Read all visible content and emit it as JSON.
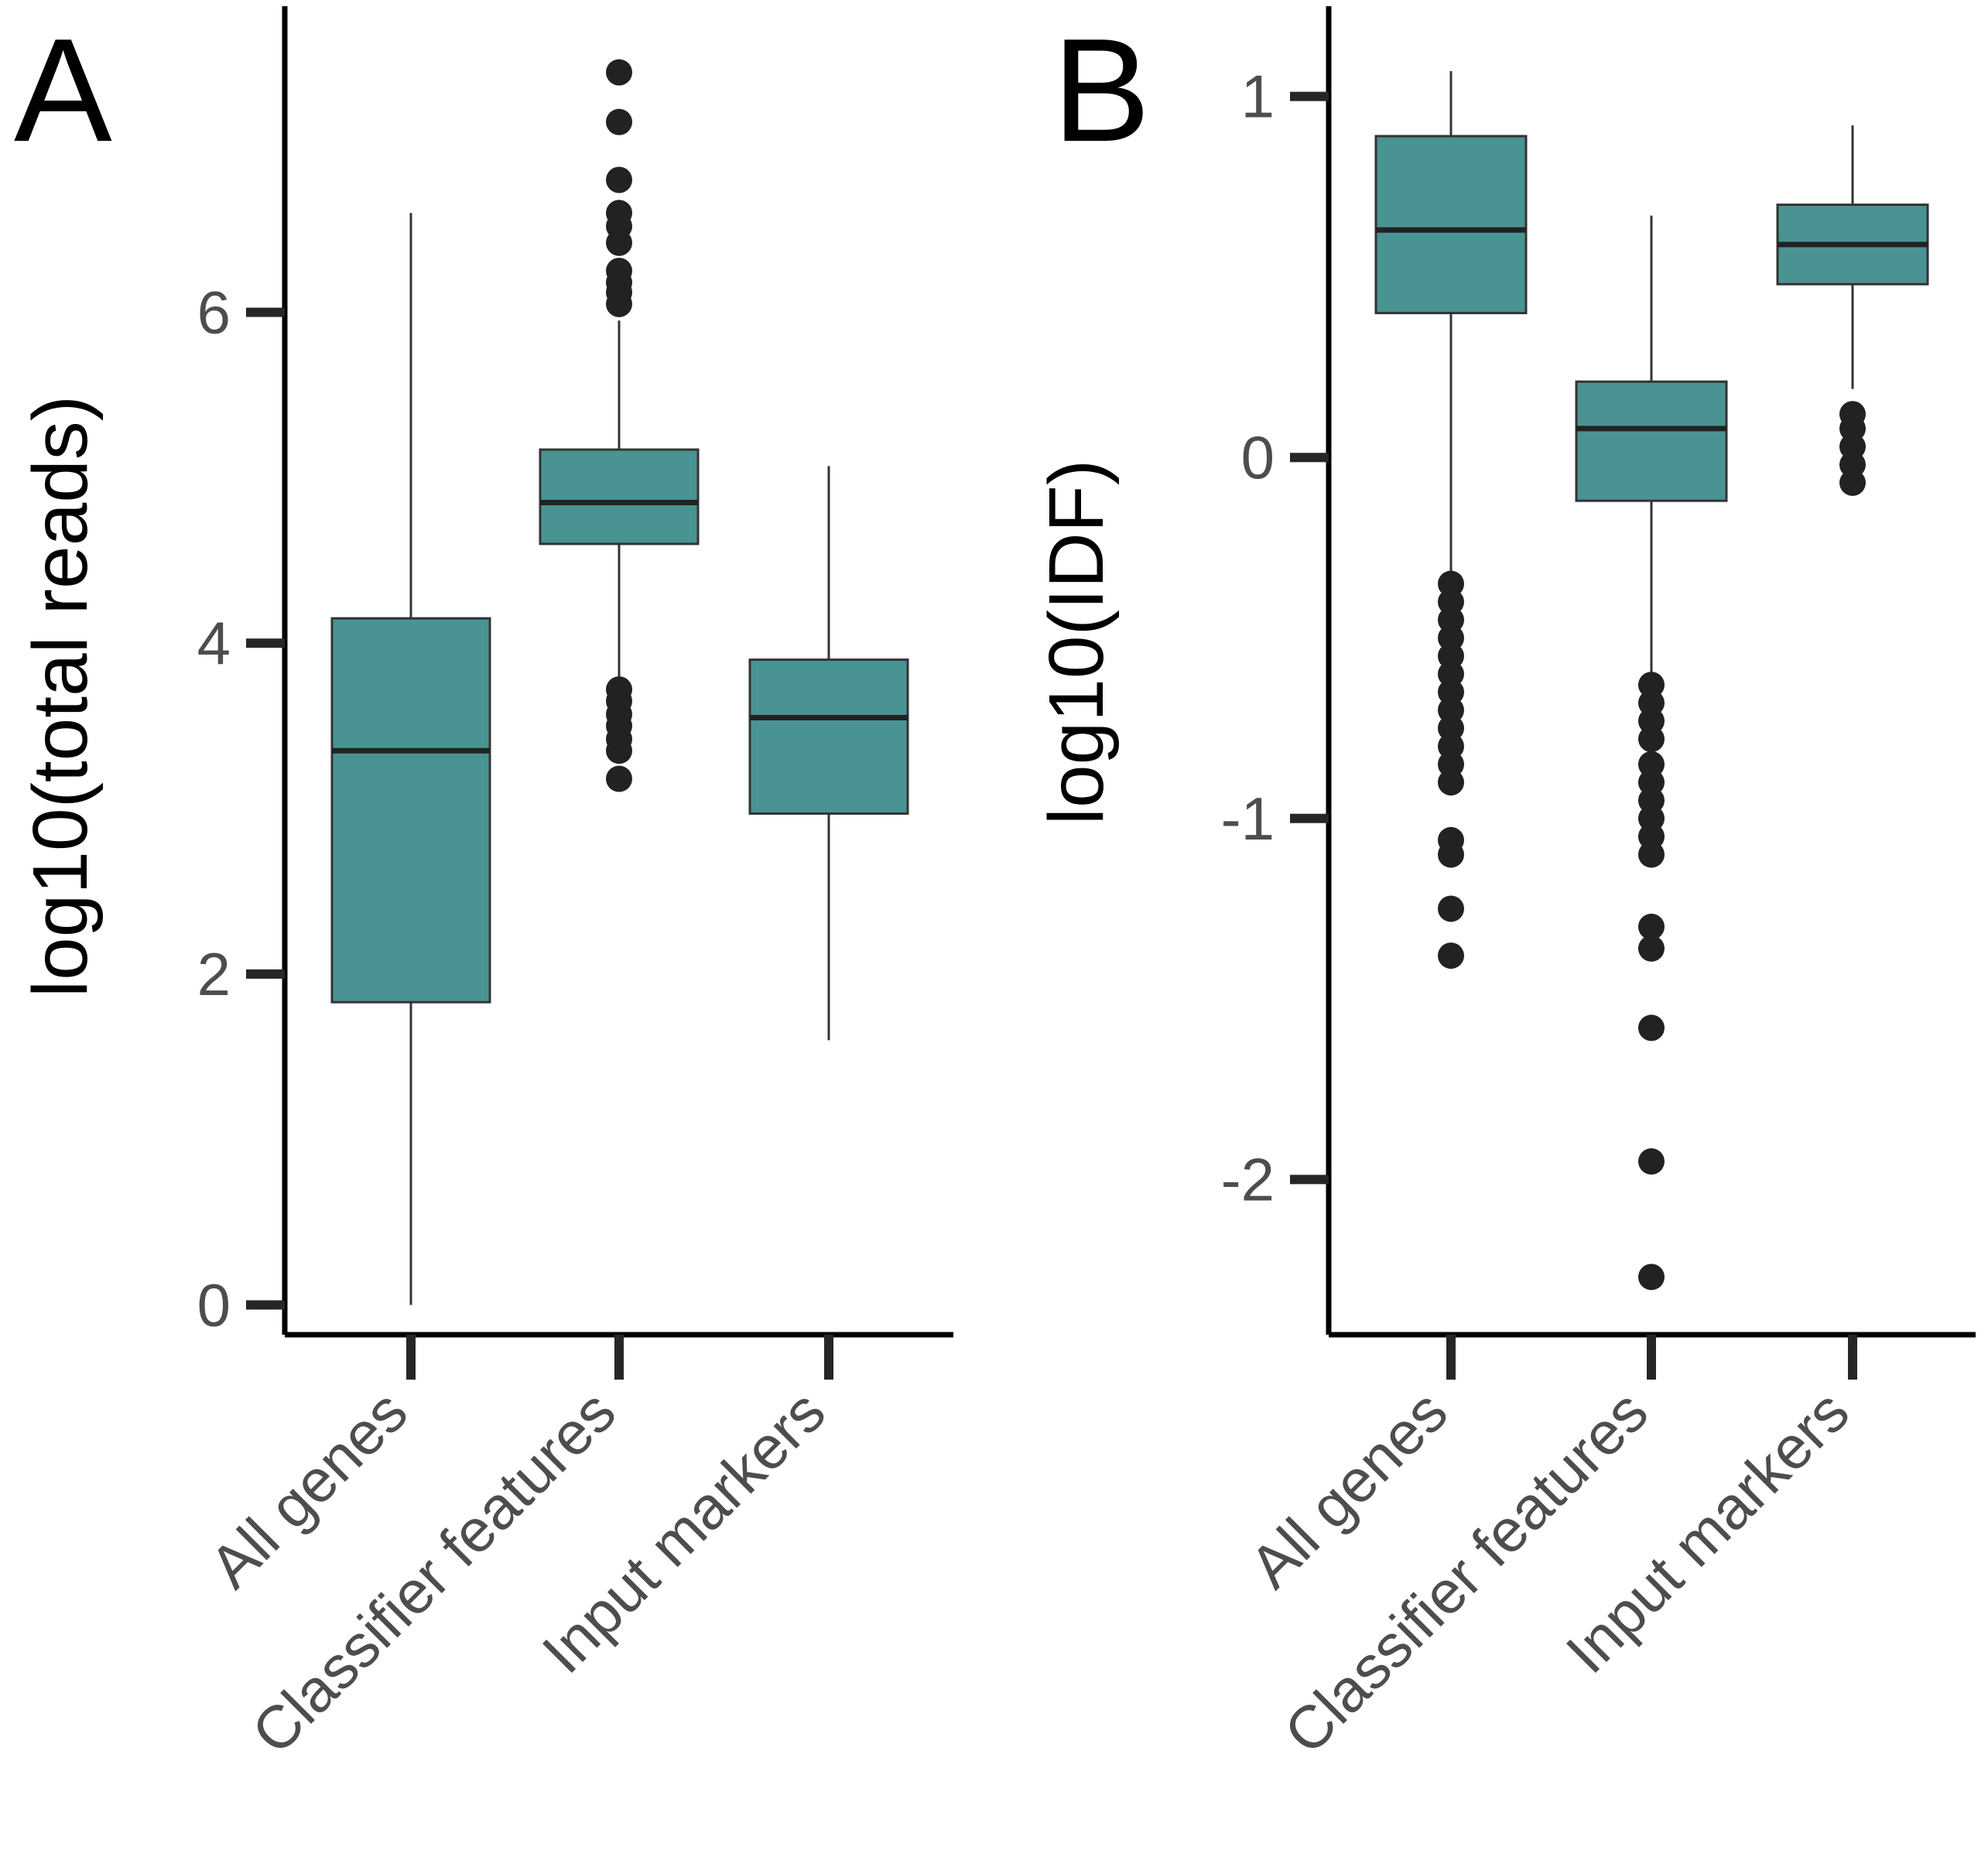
{
  "chart_data": [
    {
      "panel_label": "A",
      "type": "boxplot",
      "ylabel": "log10(total reads)",
      "xlabel": "",
      "ylim": [
        -0.18,
        7.85
      ],
      "yticks": [
        0,
        2,
        4,
        6
      ],
      "ytick_labels": [
        "0",
        "2",
        "4",
        "6"
      ],
      "grid": false,
      "categories": [
        "All genes",
        "Classifier features",
        "Input markers"
      ],
      "fill_color": "#4a9393",
      "boxes": [
        {
          "category": "All genes",
          "whisker_low": 0.0,
          "q1": 1.83,
          "median": 3.35,
          "q3": 4.15,
          "whisker_high": 6.6,
          "outliers": []
        },
        {
          "category": "Classifier features",
          "whisker_low": 3.75,
          "q1": 4.6,
          "median": 4.85,
          "q3": 5.17,
          "whisker_high": 5.95,
          "outliers": [
            7.45,
            7.15,
            6.8,
            6.6,
            6.52,
            6.42,
            6.25,
            6.18,
            6.12,
            6.05,
            3.72,
            3.65,
            3.57,
            3.5,
            3.42,
            3.35,
            3.18
          ]
        },
        {
          "category": "Input markers",
          "whisker_low": 1.6,
          "q1": 2.97,
          "median": 3.55,
          "q3": 3.9,
          "whisker_high": 5.07,
          "outliers": []
        }
      ]
    },
    {
      "panel_label": "B",
      "type": "boxplot",
      "ylabel": "log10(IDF)",
      "xlabel": "",
      "ylim": [
        -2.43,
        1.25
      ],
      "yticks": [
        -2,
        -1,
        0,
        1
      ],
      "ytick_labels": [
        "-2",
        "-1",
        "0",
        "1"
      ],
      "grid": false,
      "categories": [
        "All genes",
        "Classifier features",
        "Input markers"
      ],
      "fill_color": "#4a9393",
      "boxes": [
        {
          "category": "All genes",
          "whisker_low": -0.33,
          "q1": 0.4,
          "median": 0.63,
          "q3": 0.89,
          "whisker_high": 1.07,
          "outliers": [
            -0.35,
            -0.4,
            -0.45,
            -0.5,
            -0.55,
            -0.6,
            -0.65,
            -0.7,
            -0.75,
            -0.8,
            -0.85,
            -0.9,
            -1.06,
            -1.1,
            -1.25,
            -1.38
          ]
        },
        {
          "category": "Classifier features",
          "whisker_low": -0.6,
          "q1": -0.12,
          "median": 0.08,
          "q3": 0.21,
          "whisker_high": 0.67,
          "outliers": [
            -0.63,
            -0.68,
            -0.73,
            -0.78,
            -0.85,
            -0.9,
            -0.95,
            -1.0,
            -1.05,
            -1.1,
            -1.3,
            -1.36,
            -1.58,
            -1.95,
            -2.27
          ]
        },
        {
          "category": "Input markers",
          "whisker_low": 0.19,
          "q1": 0.48,
          "median": 0.59,
          "q3": 0.7,
          "whisker_high": 0.92,
          "outliers": [
            0.12,
            0.08,
            0.03,
            -0.02,
            -0.07
          ]
        }
      ]
    }
  ]
}
